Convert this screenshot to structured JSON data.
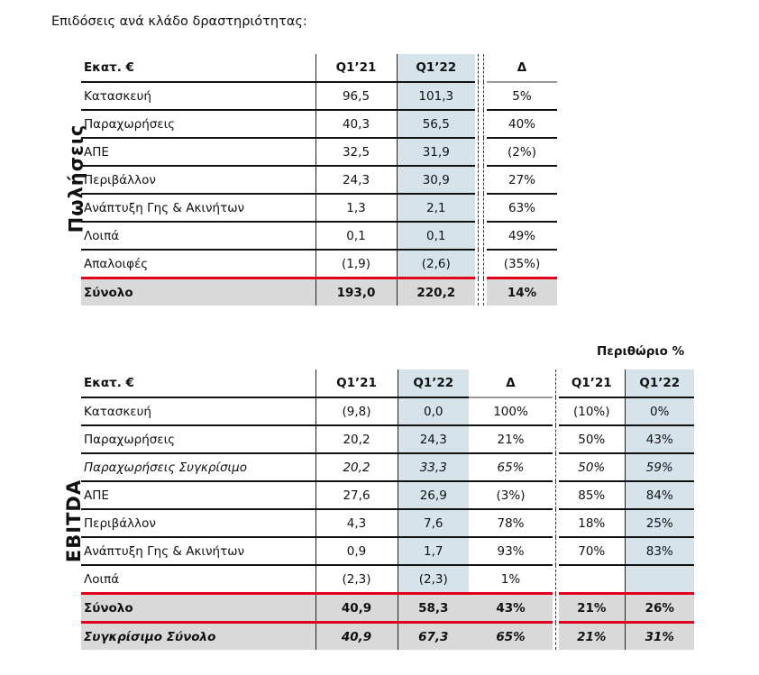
{
  "title": "Επιδόσεις ανά κλάδο δραστηριότητας:",
  "sales": {
    "side_label": "Πωλήσεις",
    "headers": [
      "Εκατ. €",
      "Q1’21",
      "Q1’22",
      "Δ"
    ],
    "rows": [
      [
        "Κατασκευή",
        "96,5",
        "101,3",
        "5%"
      ],
      [
        "Παραχωρήσεις",
        "40,3",
        "56,5",
        "40%"
      ],
      [
        "ΑΠΕ",
        "32,5",
        "31,9",
        "(2%)"
      ],
      [
        "Περιβάλλον",
        "24,3",
        "30,9",
        "27%"
      ],
      [
        "Ανάπτυξη Γης & Ακινήτων",
        "1,3",
        "2,1",
        "63%"
      ],
      [
        "Λοιπά",
        "0,1",
        "0,1",
        "49%"
      ],
      [
        "Απαλοιφές",
        "(1,9)",
        "(2,6)",
        "(35%)"
      ]
    ],
    "total": [
      "Σύνολο",
      "193,0",
      "220,2",
      "14%"
    ]
  },
  "ebitda": {
    "side_label": "EBITDA",
    "margin_title": "Περιθώριο %",
    "headers": [
      "Εκατ. €",
      "Q1’21",
      "Q1’22",
      "Δ",
      "Q1’21",
      "Q1’22"
    ],
    "rows": [
      {
        "cells": [
          "Κατασκευή",
          "(9,8)",
          "0,0",
          "100%",
          "(10%)",
          "0%"
        ],
        "italic": false
      },
      {
        "cells": [
          "Παραχωρήσεις",
          "20,2",
          "24,3",
          "21%",
          "50%",
          "43%"
        ],
        "italic": false
      },
      {
        "cells": [
          "Παραχωρήσεις Συγκρίσιμο",
          "20,2",
          "33,3",
          "65%",
          "50%",
          "59%"
        ],
        "italic": true
      },
      {
        "cells": [
          "ΑΠΕ",
          "27,6",
          "26,9",
          "(3%)",
          "85%",
          "84%"
        ],
        "italic": false
      },
      {
        "cells": [
          "Περιβάλλον",
          "4,3",
          "7,6",
          "78%",
          "18%",
          "25%"
        ],
        "italic": false
      },
      {
        "cells": [
          "Ανάπτυξη Γης & Ακινήτων",
          "0,9",
          "1,7",
          "93%",
          "70%",
          "83%"
        ],
        "italic": false
      },
      {
        "cells": [
          "Λοιπά",
          "(2,3)",
          "(2,3)",
          "1%",
          "",
          ""
        ],
        "italic": false
      }
    ],
    "total": [
      "Σύνολο",
      "40,9",
      "58,3",
      "43%",
      "21%",
      "26%"
    ],
    "comparable_total": [
      "Συγκρίσιμο Σύνολο",
      "40,9",
      "67,3",
      "65%",
      "21%",
      "31%"
    ]
  },
  "colors": {
    "highlight": "#d6e3ea",
    "total_bg": "#d9d9d9",
    "accent_red": "#e0001b"
  }
}
